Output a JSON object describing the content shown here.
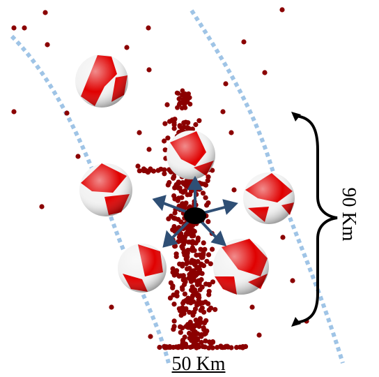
{
  "labels": {
    "length_label": "90 Km",
    "width_label": "50 Km"
  },
  "colors": {
    "event_dot": "#8b0000",
    "fault_band": "#9fc4e6",
    "beachball_compression": "#e00000",
    "beachball_dilatation": "#f2f2f2",
    "arrow": "#2f4f75",
    "hypocenter": "#000000",
    "bracket": "#000000"
  },
  "icons": {
    "beachball": "focal-mechanism-icon",
    "hypocenter": "hypocenter-icon"
  }
}
